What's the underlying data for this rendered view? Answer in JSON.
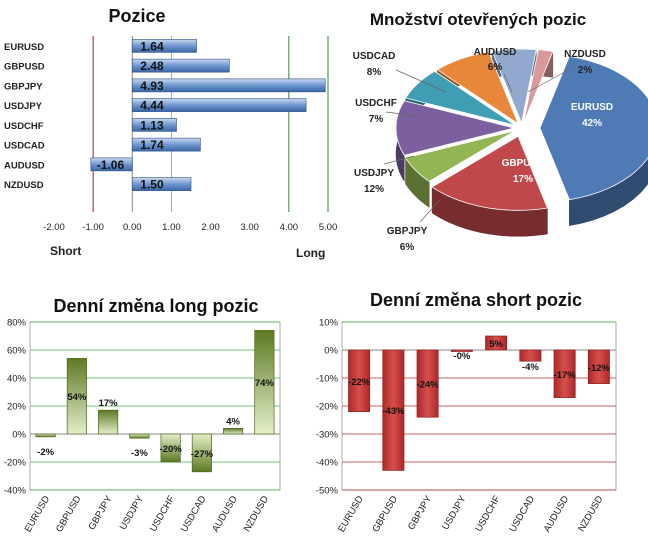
{
  "chart_data": [
    {
      "type": "bar",
      "orientation": "horizontal",
      "title": "Pozice",
      "categories": [
        "EURUSD",
        "GBPUSD",
        "GBPJPY",
        "USDJPY",
        "USDCHF",
        "USDCAD",
        "AUDUSD",
        "NZDUSD"
      ],
      "values": [
        1.64,
        2.48,
        4.93,
        4.44,
        1.13,
        1.74,
        -1.06,
        1.5
      ],
      "value_labels": [
        "1.64",
        "2.48",
        "4.93",
        "4.44",
        "1.13",
        "1.74",
        "-1.06",
        "1.50"
      ],
      "xlim": [
        -2,
        5
      ],
      "xticks": [
        -2,
        -1,
        0,
        1,
        2,
        3,
        4,
        5
      ],
      "xtick_labels": [
        "-2.00",
        "-1.00",
        "0.00",
        "1.00",
        "2.00",
        "3.00",
        "4.00",
        "5.00"
      ],
      "annotations": {
        "short": "Short",
        "long": "Long"
      },
      "colors": {
        "bar": "#4f7cc0",
        "bar_light": "#c9d9f0",
        "threshold_low": "#8b2a2a",
        "threshold_high": "#2f8f2f"
      }
    },
    {
      "type": "pie",
      "title": "Množství otevřených pozic",
      "slices": [
        {
          "label": "EURUSD",
          "value": 42,
          "text": "42%",
          "color": "#4e7bb5"
        },
        {
          "label": "GBPUSD",
          "value": 17,
          "text": "17%",
          "color": "#c0484a"
        },
        {
          "label": "GBPJPY",
          "value": 6,
          "text": "6%",
          "color": "#93b654"
        },
        {
          "label": "USDJPY",
          "value": 12,
          "text": "12%",
          "color": "#7b5f9e"
        },
        {
          "label": "USDCHF",
          "value": 7,
          "text": "7%",
          "color": "#3f9eb4"
        },
        {
          "label": "USDCAD",
          "value": 8,
          "text": "8%",
          "color": "#e6873a"
        },
        {
          "label": "AUDUSD",
          "value": 6,
          "text": "6%",
          "color": "#92a9cf"
        },
        {
          "label": "NZDUSD",
          "value": 2,
          "text": "2%",
          "color": "#d9999a"
        }
      ]
    },
    {
      "type": "bar",
      "title": "Denní změna long pozic",
      "categories": [
        "EURUSD",
        "GBPUSD",
        "GBPJPY",
        "USDJPY",
        "USDCHF",
        "USDCAD",
        "AUDUSD",
        "NZDUSD"
      ],
      "values": [
        -2,
        54,
        17,
        -3,
        -20,
        -27,
        4,
        74
      ],
      "value_labels": [
        "-2%",
        "54%",
        "17%",
        "-3%",
        "-20%",
        "-27%",
        "4%",
        "74%"
      ],
      "ylim": [
        -40,
        80
      ],
      "yticks": [
        -40,
        -20,
        0,
        20,
        40,
        60,
        80
      ],
      "ytick_labels": [
        "-40%",
        "-20%",
        "0%",
        "20%",
        "40%",
        "60%",
        "80%"
      ],
      "colors": {
        "bar": "#6e8e2e",
        "bar_light": "#e3efc9",
        "grid": "#4caf4c"
      }
    },
    {
      "type": "bar",
      "title": "Denní změna short pozic",
      "categories": [
        "EURUSD",
        "GBPUSD",
        "GBPJPY",
        "USDJPY",
        "USDCHF",
        "USDCAD",
        "AUDUSD",
        "NZDUSD"
      ],
      "values": [
        -22,
        -43,
        -24,
        0,
        5,
        -4,
        -17,
        -12
      ],
      "value_labels": [
        "-22%",
        "-43%",
        "-24%",
        "-0%",
        "5%",
        "-4%",
        "-17%",
        "-12%"
      ],
      "ylim": [
        -50,
        10
      ],
      "yticks": [
        -50,
        -40,
        -30,
        -20,
        -10,
        0,
        10
      ],
      "ytick_labels": [
        "-50%",
        "-40%",
        "-30%",
        "-20%",
        "-10%",
        "0%",
        "10%"
      ],
      "colors": {
        "bar": "#c0302c",
        "bar_light": "#f3c9c8",
        "grid_pos": "#4caf4c",
        "grid_neg": "#b03030"
      }
    }
  ]
}
